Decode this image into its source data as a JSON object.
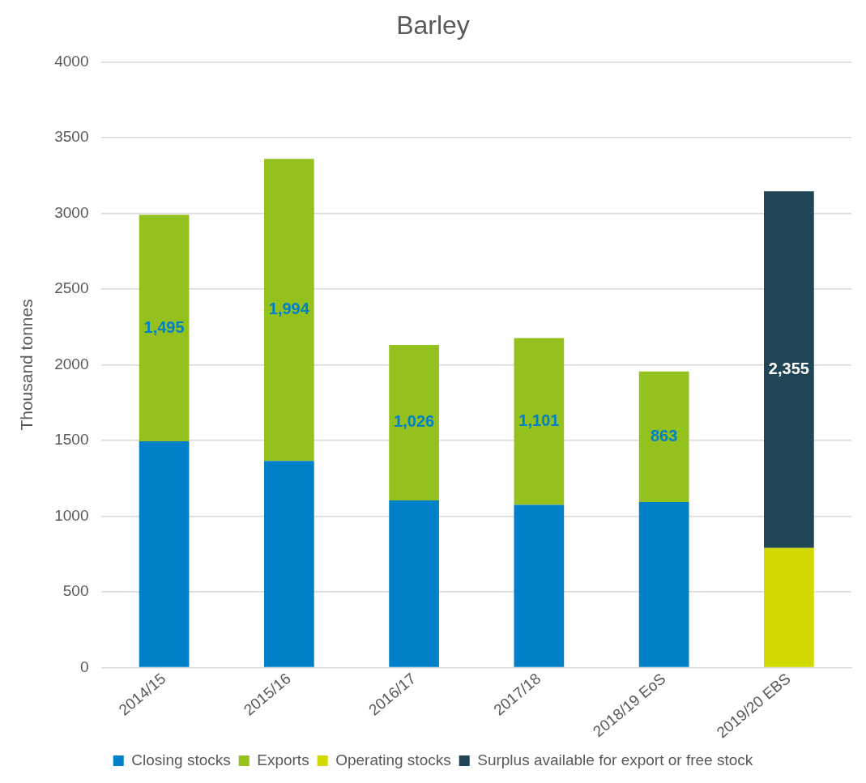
{
  "chart_data": {
    "type": "bar",
    "title": "Barley",
    "ylabel": "Thousand tonnes",
    "stacked": true,
    "categories": [
      "2014/15",
      "2015/16",
      "2016/17",
      "2017/18",
      "2018/19 EoS",
      "2019/20 EBS"
    ],
    "series": [
      {
        "name": "Closing stocks",
        "color": "#0080c9",
        "values": [
          1495,
          1365,
          1105,
          1075,
          1093,
          null
        ]
      },
      {
        "name": "Exports",
        "color": "#95c11f",
        "values": [
          1495,
          1994,
          1026,
          1101,
          863,
          null
        ],
        "value_labels": [
          "1,495",
          "1,994",
          "1,026",
          "1,101",
          "863",
          null
        ]
      },
      {
        "name": "Operating stocks",
        "color": "#d2d900",
        "values": [
          null,
          null,
          null,
          null,
          null,
          790
        ]
      },
      {
        "name": "Surplus available for export or free stock",
        "color": "#204554",
        "values": [
          null,
          null,
          null,
          null,
          null,
          2355
        ],
        "value_labels": [
          null,
          null,
          null,
          null,
          null,
          "2,355"
        ]
      }
    ],
    "ylim": [
      0,
      4000
    ],
    "yticks": [
      0,
      500,
      1000,
      1500,
      2000,
      2500,
      3000,
      3500,
      4000
    ],
    "grid": "y",
    "legend": "bottom"
  }
}
